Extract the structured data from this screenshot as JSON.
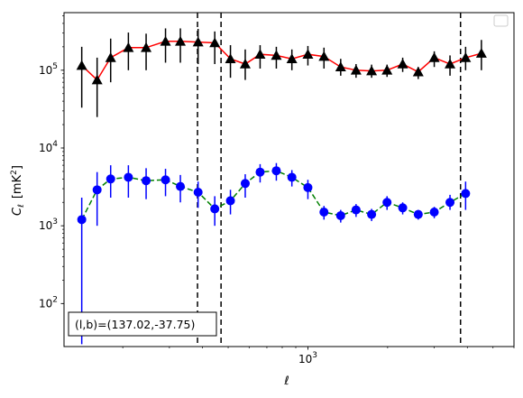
{
  "chart_data": {
    "type": "line",
    "xlabel": "ℓ",
    "ylabel": "C_ℓ  [mK²]",
    "ylabel_main": "C",
    "ylabel_sub": "ℓ",
    "ylabel_units": "[mK",
    "ylabel_units_sup": "2",
    "ylabel_units_close": "]",
    "xscale": "log",
    "yscale": "log",
    "xlim": [
      120,
      6000
    ],
    "ylim": [
      28,
      550000
    ],
    "x_ticks": [
      {
        "value": 1000,
        "base": "10",
        "exp": "3"
      }
    ],
    "y_ticks": [
      {
        "value": 100,
        "base": "10",
        "exp": "2"
      },
      {
        "value": 1000,
        "base": "10",
        "exp": "3"
      },
      {
        "value": 10000,
        "base": "10",
        "exp": "4"
      },
      {
        "value": 100000,
        "base": "10",
        "exp": "5"
      }
    ],
    "legend": "upper right",
    "vlines": [
      383,
      470,
      3770
    ],
    "annotation": "(l,b)=(137.02,-37.75)",
    "series": [
      {
        "color": "#ff0000",
        "line_style": "solid",
        "marker": "triangle",
        "marker_color": "#000000",
        "errorbar_color": "#000000",
        "x": [
          140,
          160,
          180,
          210,
          245,
          290,
          330,
          385,
          445,
          510,
          580,
          660,
          760,
          870,
          1000,
          1150,
          1330,
          1520,
          1740,
          1990,
          2280,
          2610,
          3000,
          3440,
          3940,
          4520,
          5180
        ],
        "y": [
          115000,
          75000,
          145000,
          195000,
          195000,
          235000,
          235000,
          230000,
          225000,
          140000,
          120000,
          160000,
          155000,
          140000,
          160000,
          150000,
          110000,
          100000,
          98000,
          100000,
          120000,
          95000,
          145000,
          120000,
          145000,
          165000,
          null
        ],
        "err_low": [
          82000,
          50000,
          75000,
          95000,
          95000,
          110000,
          110000,
          110000,
          105000,
          60000,
          45000,
          55000,
          50000,
          40000,
          45000,
          45000,
          25000,
          20000,
          18000,
          18000,
          25000,
          18000,
          35000,
          35000,
          45000,
          65000,
          null
        ],
        "err_high": [
          85000,
          70000,
          110000,
          110000,
          100000,
          110000,
          110000,
          110000,
          90000,
          70000,
          65000,
          50000,
          45000,
          45000,
          45000,
          45000,
          30000,
          20000,
          20000,
          18000,
          25000,
          15000,
          30000,
          35000,
          55000,
          80000,
          null
        ]
      },
      {
        "color": "#008000",
        "line_style": "dashed",
        "marker": "circle",
        "marker_color": "#0000ff",
        "errorbar_color": "#0000ff",
        "x": [
          140,
          160,
          180,
          210,
          245,
          290,
          330,
          385,
          445,
          510,
          580,
          660,
          760,
          870,
          1000,
          1150,
          1330,
          1520,
          1740,
          1990,
          2280,
          2610,
          3000,
          3440,
          3940,
          4520,
          5180
        ],
        "y": [
          1200,
          2900,
          4000,
          4200,
          3800,
          3900,
          3200,
          2700,
          1650,
          2100,
          3500,
          4900,
          5100,
          4200,
          3100,
          1500,
          1350,
          1600,
          1400,
          2000,
          1700,
          1400,
          1500,
          2000,
          2600,
          null,
          null
        ],
        "err_low": [
          1170,
          1900,
          1700,
          1900,
          1600,
          1500,
          1200,
          1000,
          650,
          700,
          1200,
          1300,
          1300,
          1000,
          900,
          300,
          250,
          300,
          250,
          400,
          300,
          200,
          250,
          400,
          1000,
          null,
          null
        ],
        "err_high": [
          1100,
          2000,
          2000,
          1800,
          1700,
          1500,
          1300,
          1000,
          750,
          800,
          1100,
          1300,
          1300,
          1000,
          800,
          300,
          250,
          300,
          250,
          400,
          300,
          200,
          250,
          500,
          1100,
          null,
          null
        ]
      }
    ]
  }
}
